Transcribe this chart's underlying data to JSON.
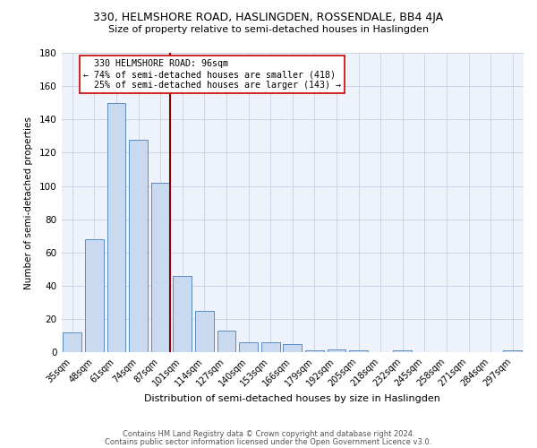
{
  "title": "330, HELMSHORE ROAD, HASLINGDEN, ROSSENDALE, BB4 4JA",
  "subtitle": "Size of property relative to semi-detached houses in Haslingden",
  "xlabel": "Distribution of semi-detached houses by size in Haslingden",
  "ylabel": "Number of semi-detached properties",
  "bar_color": "#c8d9f0",
  "bar_edge_color": "#5b8dc4",
  "categories": [
    "35sqm",
    "48sqm",
    "61sqm",
    "74sqm",
    "87sqm",
    "101sqm",
    "114sqm",
    "127sqm",
    "140sqm",
    "153sqm",
    "166sqm",
    "179sqm",
    "192sqm",
    "205sqm",
    "218sqm",
    "232sqm",
    "245sqm",
    "258sqm",
    "271sqm",
    "284sqm",
    "297sqm"
  ],
  "values": [
    12,
    68,
    150,
    128,
    102,
    46,
    25,
    13,
    6,
    6,
    5,
    1,
    2,
    1,
    0,
    1,
    0,
    0,
    0,
    0,
    1
  ],
  "ylim": [
    0,
    180
  ],
  "yticks": [
    0,
    20,
    40,
    60,
    80,
    100,
    120,
    140,
    160,
    180
  ],
  "property_label": "330 HELMSHORE ROAD: 96sqm",
  "pct_smaller": 74,
  "n_smaller": 418,
  "pct_larger": 25,
  "n_larger": 143,
  "vline_color": "#8b0000",
  "annotation_box_edge": "#cc0000",
  "footer_line1": "Contains HM Land Registry data © Crown copyright and database right 2024.",
  "footer_line2": "Contains public sector information licensed under the Open Government Licence v3.0.",
  "background_color": "#ffffff",
  "grid_color": "#ccd5e8"
}
